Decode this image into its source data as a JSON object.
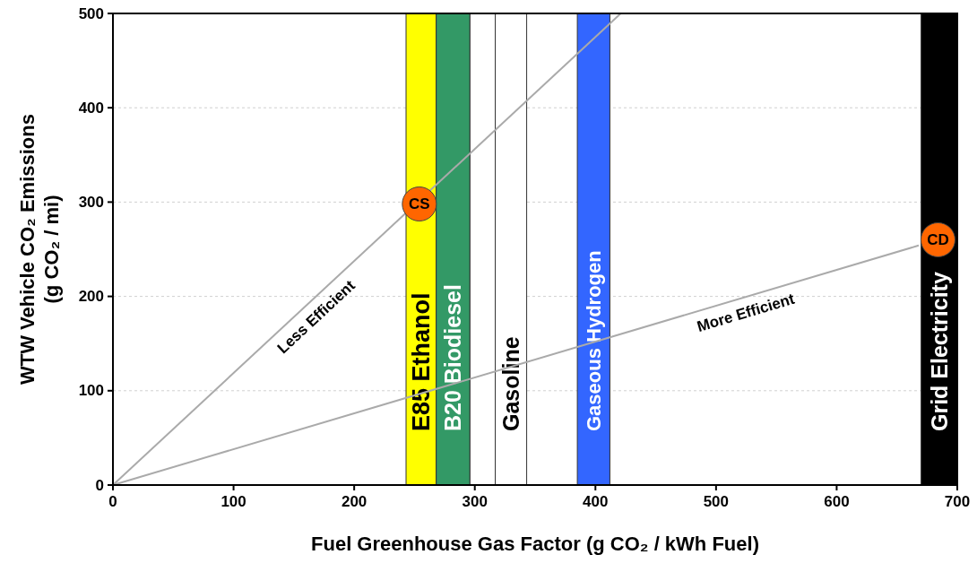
{
  "chart_data": {
    "type": "line",
    "xlabel": "Fuel Greenhouse Gas Factor (g CO₂ / kWh Fuel)",
    "ylabel": "WTW Vehicle CO₂ Emissions\n(g CO₂ / mi)",
    "xlim": [
      0,
      700
    ],
    "xticks": [
      0,
      100,
      200,
      300,
      400,
      500,
      600,
      700
    ],
    "ylim": [
      0,
      500
    ],
    "yticks": [
      0,
      100,
      200,
      300,
      400,
      500
    ],
    "grid": "y",
    "bands": [
      {
        "axis": "x",
        "from": 243,
        "to": 268,
        "label": "E85 Ethanol",
        "color": "#ffff00"
      },
      {
        "axis": "x",
        "from": 268,
        "to": 296,
        "label": "B20 Biodiesel",
        "color": "#339966"
      },
      {
        "axis": "x",
        "from": 296,
        "to": 317,
        "label": null,
        "color": "#ffffff"
      },
      {
        "axis": "x",
        "from": 317,
        "to": 343,
        "label": "Gasoline",
        "color": "#ffffff"
      },
      {
        "axis": "x",
        "from": 385,
        "to": 412,
        "label": "Gaseous Hydrogen",
        "color": "#3366ff"
      },
      {
        "axis": "x",
        "from": 670,
        "to": 700,
        "label": "Grid Electricity",
        "color": "#000000"
      }
    ],
    "series": [
      {
        "name": "Less Efficient",
        "color": "#aaaaaa",
        "x": [
          0,
          421
        ],
        "values": [
          0,
          500
        ]
      },
      {
        "name": "More Efficient",
        "color": "#aaaaaa",
        "x": [
          0,
          668
        ],
        "values": [
          0,
          254
        ]
      },
      {
        "name": "CS",
        "type": "scatter",
        "marker": "circle",
        "color": "#ff6600",
        "x": [
          254
        ],
        "values": [
          298
        ]
      },
      {
        "name": "CD",
        "type": "scatter",
        "marker": "circle",
        "color": "#ff6600",
        "x": [
          684
        ],
        "values": [
          260
        ]
      }
    ]
  }
}
